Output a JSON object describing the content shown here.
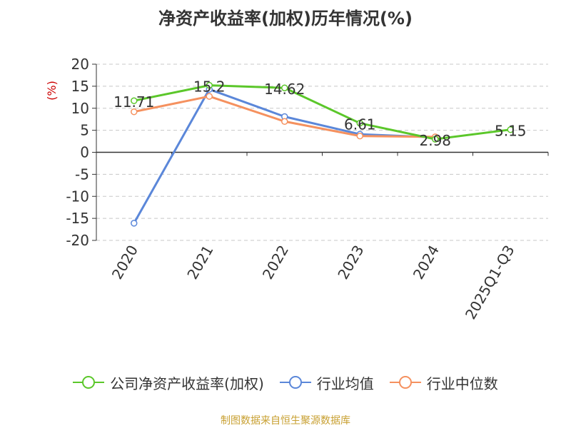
{
  "chart_data": {
    "type": "line",
    "title": "净资产收益率(加权)历年情况(%)",
    "ylabel": "(%)",
    "ylim": [
      -20,
      20
    ],
    "yticks": [
      20,
      15,
      10,
      5,
      0,
      -5,
      -10,
      -15,
      -20
    ],
    "categories": [
      "2020",
      "2021",
      "2022",
      "2023",
      "2024",
      "2025Q1-Q3"
    ],
    "grid": true,
    "legend_position": "bottom",
    "series": [
      {
        "name": "公司净资产收益率(加权)",
        "color": "#5bc72a",
        "labeled": true,
        "values": [
          11.71,
          15.2,
          14.62,
          6.61,
          2.98,
          5.15
        ],
        "labels": [
          "11.71",
          "15.2",
          "14.62",
          "6.61",
          "2.98",
          "5.15"
        ]
      },
      {
        "name": "行业均值",
        "color": "#5b87d9",
        "labeled": false,
        "values": [
          -16.1,
          14.3,
          8.1,
          4.1,
          3.4,
          null
        ]
      },
      {
        "name": "行业中位数",
        "color": "#f5915f",
        "labeled": false,
        "values": [
          9.2,
          12.7,
          7.0,
          3.7,
          3.5,
          null
        ]
      }
    ],
    "source": "制图数据来自恒生聚源数据库"
  }
}
